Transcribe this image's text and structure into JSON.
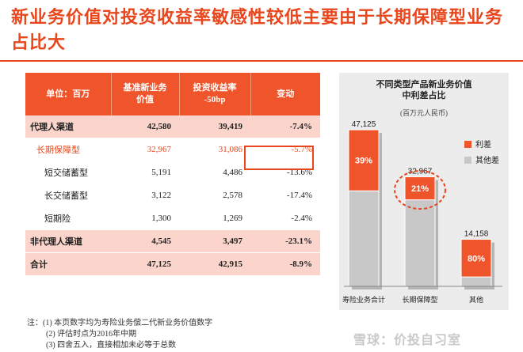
{
  "title": "新业务价值对投资收益率敏感性较低主要由于长期保障型业务占比大",
  "table": {
    "headers": [
      "单位：百万",
      "基准新业务\n价值",
      "投资收益率\n-50bp",
      "变动"
    ],
    "rows": [
      {
        "label": "代理人渠道",
        "base": "42,580",
        "invest": "39,419",
        "change": "-7.4%",
        "style": "pink"
      },
      {
        "label": "长期保障型",
        "base": "32,967",
        "invest": "31,086",
        "change": "-5.7%",
        "style": "red"
      },
      {
        "label": "短交储蓄型",
        "base": "5,191",
        "invest": "4,486",
        "change": "-13.6%",
        "style": "sub"
      },
      {
        "label": "长交储蓄型",
        "base": "3,122",
        "invest": "2,578",
        "change": "-17.4%",
        "style": "sub"
      },
      {
        "label": "短期险",
        "base": "1,300",
        "invest": "1,269",
        "change": "-2.4%",
        "style": "sub"
      },
      {
        "label": "非代理人渠道",
        "base": "4,545",
        "invest": "3,497",
        "change": "-23.1%",
        "style": "pink"
      },
      {
        "label": "合计",
        "base": "47,125",
        "invest": "42,915",
        "change": "-8.9%",
        "style": "pink"
      }
    ]
  },
  "notes": [
    "注：(1) 本页数字均为寿险业务偿二代新业务价值数字",
    "(2) 评估时点为2016年中期",
    "(3) 四舍五入，直接相加未必等于总数"
  ],
  "chart_data": {
    "type": "bar",
    "title_line1": "不同类型产品新业务价值",
    "title_line2": "中利差占比",
    "unit": "(百万元人民币)",
    "categories": [
      "寿险业务合计",
      "长期保障型",
      "其他"
    ],
    "totals": [
      47125,
      32967,
      14158
    ],
    "total_labels": [
      "47,125",
      "32,967",
      "14,158"
    ],
    "interest_spread_share": [
      0.39,
      0.21,
      0.8
    ],
    "share_labels": [
      "39%",
      "21%",
      "80%"
    ],
    "series": [
      {
        "name": "利差",
        "color": "#f0542a"
      },
      {
        "name": "其他差",
        "color": "#c8c8c8"
      }
    ],
    "ylim": [
      0,
      50000
    ],
    "highlight_index": 1
  },
  "watermark": "雪球：价投自习室"
}
